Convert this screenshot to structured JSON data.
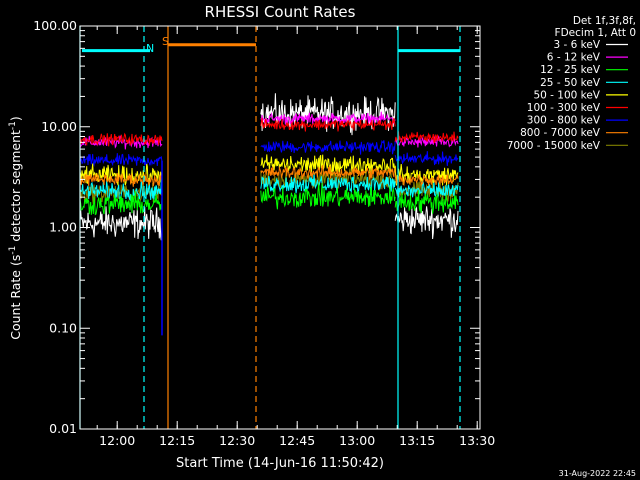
{
  "chart_data": {
    "type": "line",
    "title": "RHESSI Count Rates",
    "xlabel": "Start Time (14-Jun-16 11:50:42)",
    "ylabel_main": "Count Rate (s",
    "ylabel_sup1": "-1",
    "ylabel_mid": " detector segment",
    "ylabel_sup2": "-1",
    "ylabel_end": ")",
    "y_scale": "log",
    "ylim": [
      0.01,
      100
    ],
    "x_tick_labels": [
      "12:00",
      "12:15",
      "12:30",
      "12:45",
      "13:00",
      "13:15",
      "13:30"
    ],
    "x_tick_minutes": [
      9.3,
      24.3,
      39.3,
      54.3,
      69.3,
      84.3,
      99.3
    ],
    "xlim_minutes": [
      0,
      100
    ],
    "y_ticks": [
      {
        "value": 100,
        "label": "100.00"
      },
      {
        "value": 10,
        "label": "10.00"
      },
      {
        "value": 1,
        "label": "1.00"
      },
      {
        "value": 0.1,
        "label": "0.10"
      },
      {
        "value": 0.01,
        "label": "0.01"
      }
    ],
    "legend_header": [
      "Det 1f,3f,8f,",
      "FDecim 1, Att 0"
    ],
    "legend_placement": "top-right",
    "segments_minutes": [
      [
        0,
        20.5
      ],
      [
        45.2,
        78.8
      ],
      [
        78.8,
        94.5
      ]
    ],
    "series": [
      {
        "name": "3 - 6 keV",
        "color": "#ffffff",
        "values": [
          1.1,
          13.5,
          1.2
        ]
      },
      {
        "name": "6 - 12 keV",
        "color": "#ff00ff",
        "values": [
          7.0,
          12.0,
          7.0
        ]
      },
      {
        "name": "12 - 25 keV",
        "color": "#00ff00",
        "values": [
          1.7,
          2.0,
          1.8
        ]
      },
      {
        "name": "25 - 50 keV",
        "color": "#00ffff",
        "values": [
          2.3,
          2.7,
          2.3
        ]
      },
      {
        "name": "50 - 100 keV",
        "color": "#ffff00",
        "values": [
          3.3,
          4.2,
          3.3
        ]
      },
      {
        "name": "100 - 300 keV",
        "color": "#ff0000",
        "values": [
          7.5,
          10.5,
          7.8
        ]
      },
      {
        "name": "300 - 800 keV",
        "color": "#0000ff",
        "values": [
          4.6,
          6.3,
          4.8
        ]
      },
      {
        "name": "800 - 7000 keV",
        "color": "#ff8000",
        "values": [
          3.0,
          3.5,
          3.0
        ]
      },
      {
        "name": "7000 - 15000 keV",
        "color": "#808000",
        "values": [
          2.2,
          3.0,
          2.3
        ]
      }
    ],
    "flag_markers": [
      {
        "label": "N",
        "color": "#00ffff",
        "minute": 17.5
      },
      {
        "label": "S",
        "color": "#ff8000",
        "minute": 21.5
      }
    ],
    "night_bars": [
      {
        "from_minute": 0.5,
        "to_minute": 17.5,
        "value": 57,
        "color": "#00ffff"
      },
      {
        "from_minute": 22.0,
        "to_minute": 44.0,
        "value": 65,
        "color": "#ff8000"
      },
      {
        "from_minute": 79.5,
        "to_minute": 95.0,
        "value": 57,
        "color": "#00ffff"
      }
    ],
    "vlines": [
      {
        "minute": 0,
        "color": "#00ffff",
        "style": "solid"
      },
      {
        "minute": 16.0,
        "color": "#00ffff",
        "style": "dashed"
      },
      {
        "minute": 22.0,
        "color": "#ff8000",
        "style": "solid"
      },
      {
        "minute": 44.0,
        "color": "#ff8000",
        "style": "dashed"
      },
      {
        "minute": 79.5,
        "color": "#00ffff",
        "style": "solid"
      },
      {
        "minute": 95.0,
        "color": "#00ffff",
        "style": "dashed"
      }
    ],
    "grid": false,
    "timestamp": "31-Aug-2022 22:45"
  }
}
